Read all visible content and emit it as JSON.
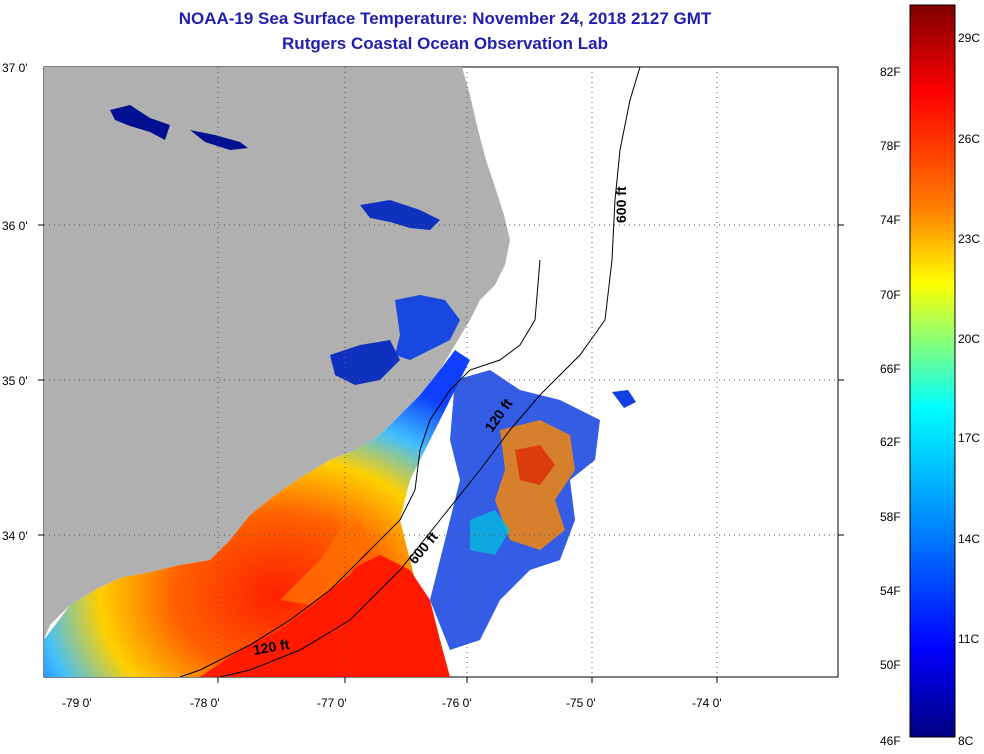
{
  "title": {
    "line1": "NOAA-19 Sea Surface Temperature:  November 24, 2018 2127 GMT",
    "line2": "Rutgers Coastal Ocean Observation Lab"
  },
  "map": {
    "lat_labels": [
      "37 0'",
      "36 0'",
      "35 0'",
      "34 0'"
    ],
    "lon_labels": [
      "-79 0'",
      "-78 0'",
      "-77 0'",
      "-76 0'",
      "-75 0'",
      "-74 0'"
    ],
    "contour_labels": [
      "600 ft",
      "600 ft",
      "120 ft",
      "120 ft"
    ],
    "colors": {
      "land": "#b0b0b0",
      "ocean_no_data": "#ffffff",
      "grid": "#555555"
    }
  },
  "colorbar": {
    "fahrenheit": [
      "82F",
      "78F",
      "74F",
      "70F",
      "66F",
      "62F",
      "58F",
      "54F",
      "50F",
      "46F"
    ],
    "celsius": [
      "29C",
      "26C",
      "23C",
      "20C",
      "17C",
      "14C",
      "11C",
      "8C"
    ],
    "gradient": [
      "#800000",
      "#ff0000",
      "#ff8000",
      "#ffff00",
      "#00ffff",
      "#0080ff",
      "#0000ff",
      "#000080"
    ]
  }
}
